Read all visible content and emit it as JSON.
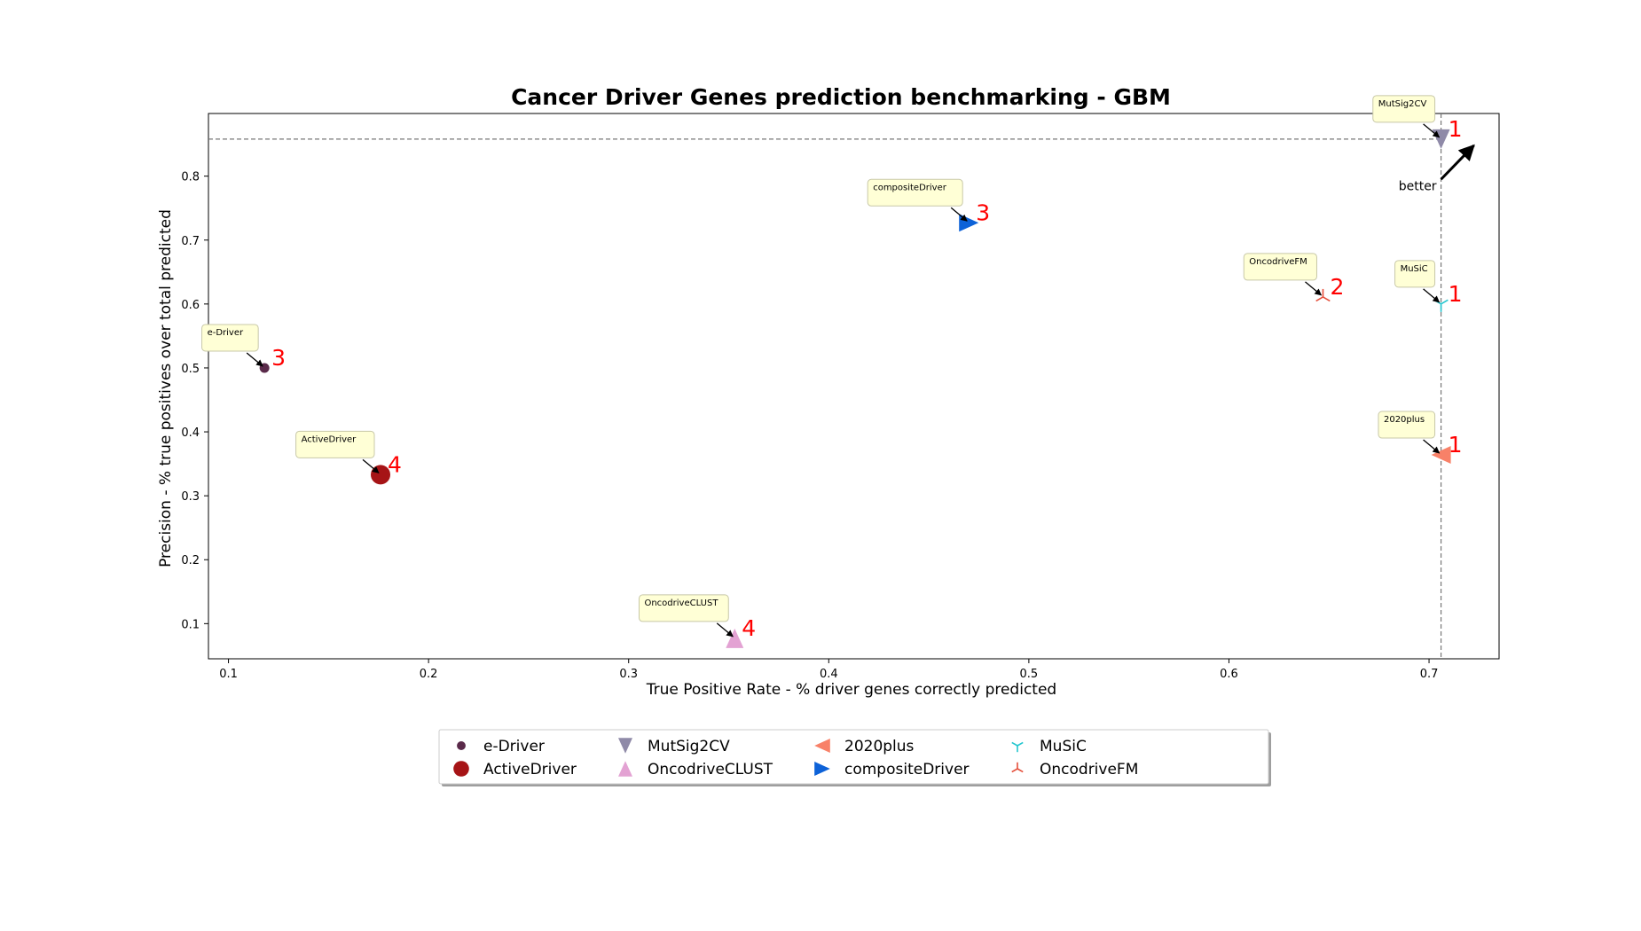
{
  "chart_data": {
    "type": "scatter",
    "title": "Cancer Driver Genes prediction benchmarking - GBM",
    "xlabel": "True Positive Rate - % driver genes correctly predicted",
    "ylabel": "Precision - % true positives over total predicted",
    "xlim": [
      0.09,
      0.735
    ],
    "ylim": [
      0.045,
      0.898
    ],
    "xticks": [
      0.1,
      0.2,
      0.3,
      0.4,
      0.5,
      0.6,
      0.7
    ],
    "xtick_labels": [
      "0.1",
      "0.2",
      "0.3",
      "0.4",
      "0.5",
      "0.6",
      "0.7"
    ],
    "yticks": [
      0.1,
      0.2,
      0.3,
      0.4,
      0.5,
      0.6,
      0.7,
      0.8
    ],
    "ytick_labels": [
      "0.1",
      "0.2",
      "0.3",
      "0.4",
      "0.5",
      "0.6",
      "0.7",
      "0.8"
    ],
    "grid": false,
    "legend_position": "below plot",
    "reference_lines": {
      "best_x": 0.706,
      "best_y": 0.858
    },
    "better_label": "better",
    "series": [
      {
        "name": "e-Driver",
        "x": 0.118,
        "y": 0.5,
        "rank": "3",
        "marker": "circle-small",
        "color": "#5a2a4a"
      },
      {
        "name": "ActiveDriver",
        "x": 0.176,
        "y": 0.333,
        "rank": "4",
        "marker": "circle-large",
        "color": "#a61416"
      },
      {
        "name": "MutSig2CV",
        "x": 0.706,
        "y": 0.858,
        "rank": "1",
        "marker": "triangle-down",
        "color": "#8f8aa8"
      },
      {
        "name": "OncodriveCLUST",
        "x": 0.353,
        "y": 0.077,
        "rank": "4",
        "marker": "triangle-up",
        "color": "#e3a2d3"
      },
      {
        "name": "2020plus",
        "x": 0.706,
        "y": 0.364,
        "rank": "1",
        "marker": "triangle-left",
        "color": "#f88168"
      },
      {
        "name": "compositeDriver",
        "x": 0.47,
        "y": 0.727,
        "rank": "3",
        "marker": "triangle-right",
        "color": "#0d62d8"
      },
      {
        "name": "MuSiC",
        "x": 0.706,
        "y": 0.6,
        "rank": "1",
        "marker": "tri-down",
        "color": "#24c6cf"
      },
      {
        "name": "OncodriveFM",
        "x": 0.647,
        "y": 0.611,
        "rank": "2",
        "marker": "tri-up",
        "color": "#e5503c"
      }
    ]
  }
}
